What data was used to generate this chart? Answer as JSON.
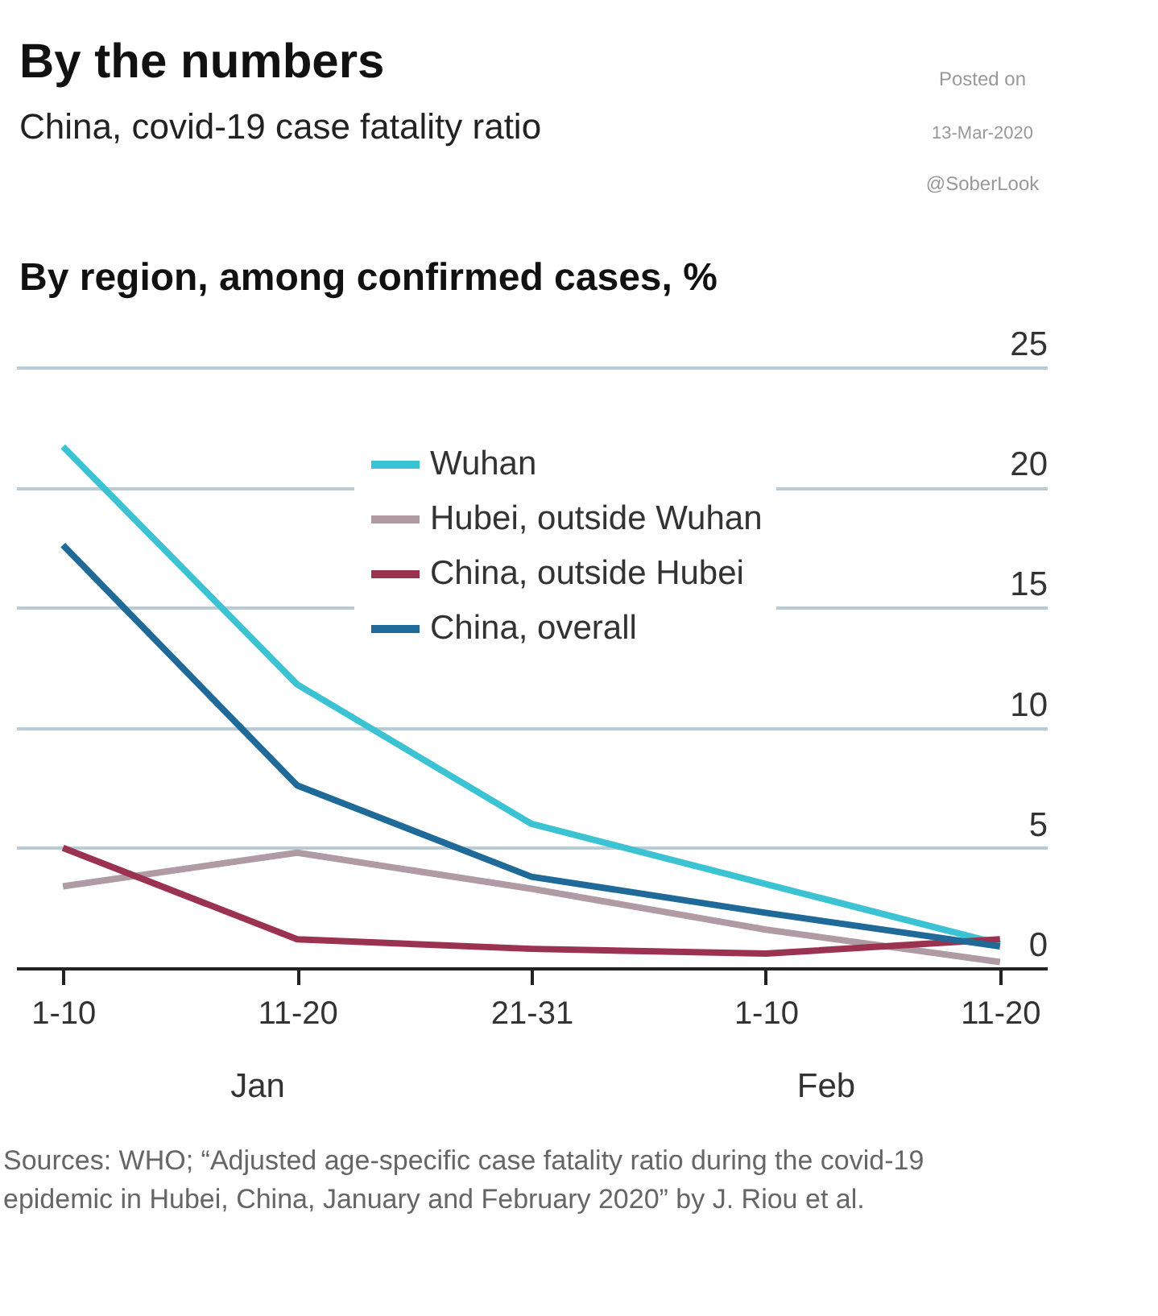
{
  "chart_data": {
    "type": "line",
    "title": "By the numbers",
    "subtitle": "China, covid-19 case fatality ratio",
    "ylabel": "By region, among confirmed cases, %",
    "categories": [
      "1-10",
      "11-20",
      "21-31",
      "1-10",
      "11-20"
    ],
    "series": [
      {
        "name": "Wuhan",
        "color": "#3cc3d3",
        "values": [
          21.7,
          11.8,
          6.0,
          3.5,
          1.0
        ]
      },
      {
        "name": "Hubei, outside Wuhan",
        "color": "#b09aa3",
        "values": [
          3.4,
          4.8,
          3.3,
          1.6,
          0.25
        ]
      },
      {
        "name": "China, outside Hubei",
        "color": "#9b3350",
        "values": [
          5.0,
          1.2,
          0.8,
          0.6,
          1.2
        ]
      },
      {
        "name": "China, overall",
        "color": "#1f6a98",
        "values": [
          17.6,
          7.6,
          3.8,
          2.3,
          0.9
        ]
      }
    ],
    "ylim": [
      0,
      25
    ],
    "yticks": [
      0,
      5,
      10,
      15,
      20,
      25
    ],
    "grid": "y",
    "legend": "top",
    "marker": "none",
    "line_style": "solid",
    "annotations": [
      "Jan",
      "Feb",
      "Sources: WHO; “Adjusted age-specific case fatality ratio during the covid-19 epidemic in Hubei, China, January and February 2020” by J. Riou et al.",
      "Posted on",
      "13-Mar-2020",
      "@SoberLook"
    ]
  }
}
